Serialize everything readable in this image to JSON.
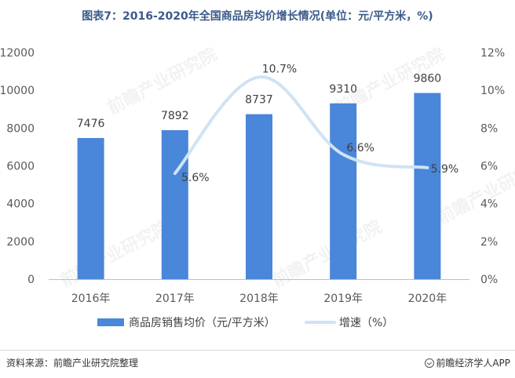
{
  "chart_data": {
    "type": "bar",
    "title": "图表7：2016-2020年全国商品房均价增长情况(单位：元/平方米，%)",
    "categories": [
      "2016年",
      "2017年",
      "2018年",
      "2019年",
      "2020年"
    ],
    "series": [
      {
        "name": "商品房销售均价（元/平方米）",
        "type": "bar",
        "axis": "left",
        "values": [
          7476,
          7892,
          8737,
          9310,
          9860
        ],
        "labels": [
          "7476",
          "7892",
          "8737",
          "9310",
          "9860"
        ],
        "color": "#4a86d9"
      },
      {
        "name": "增速（%）",
        "type": "line",
        "axis": "right",
        "smooth": true,
        "x": [
          "2017年",
          "2018年",
          "2019年",
          "2020年"
        ],
        "values": [
          5.6,
          10.7,
          6.6,
          5.9
        ],
        "labels": [
          "5.6%",
          "10.7%",
          "6.6%",
          "5.9%"
        ],
        "color": "#cfe3f5"
      }
    ],
    "y_left": {
      "ylim": [
        0,
        12000
      ],
      "ticks": [
        0,
        2000,
        4000,
        6000,
        8000,
        10000,
        12000
      ],
      "tick_labels": [
        "0",
        "2000",
        "4000",
        "6000",
        "8000",
        "10000",
        "12000"
      ]
    },
    "y_right": {
      "ylim": [
        0,
        12
      ],
      "ticks": [
        0,
        2,
        4,
        6,
        8,
        10,
        12
      ],
      "tick_labels": [
        "0%",
        "2%",
        "4%",
        "6%",
        "8%",
        "10%",
        "12%"
      ]
    },
    "grid": false,
    "legend_position": "bottom"
  },
  "footer": {
    "source": "资料来源：前瞻产业研究院整理",
    "brand": "前瞻经济学人APP"
  },
  "watermark": "前瞻产业研究院"
}
